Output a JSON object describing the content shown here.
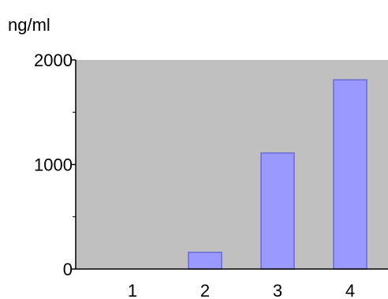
{
  "chart_data": {
    "type": "bar",
    "ylabel": "ng/ml",
    "categories": [
      "1",
      "2",
      "3",
      "4"
    ],
    "values": [
      0,
      160,
      1110,
      1810
    ],
    "ylim": [
      0,
      2000
    ],
    "yticks": [
      0,
      1000,
      2000
    ],
    "ytick_labels": [
      "0",
      "1000",
      "2000"
    ],
    "grid": false,
    "legend": "none",
    "colors": {
      "plot_background": "#c0c0c0",
      "bar_fill": "#9999ff",
      "bar_stroke": "#6b6bd6",
      "axis": "#000000"
    }
  }
}
